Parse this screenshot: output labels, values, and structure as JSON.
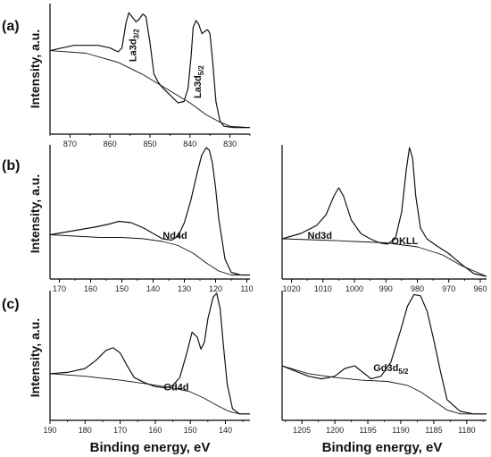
{
  "figure": {
    "x_axis_label": "Binding energy, eV",
    "y_axis_label": "Intensity, a.u."
  },
  "chart_data": [
    {
      "id": "a",
      "type": "line",
      "panel_label": "(a)",
      "xlim": [
        875,
        825
      ],
      "x_reversed": true,
      "ticks": [
        870,
        860,
        850,
        840,
        830
      ],
      "ylim": [
        0,
        1
      ],
      "show_ylabel": true,
      "annotations": [
        {
          "main": "La3d",
          "sub": "3/2",
          "x": 853.5,
          "y": 0.68,
          "rotate": -90
        },
        {
          "main": "La3d",
          "sub": "5/2",
          "x": 837.3,
          "y": 0.4,
          "rotate": -90
        }
      ],
      "series": [
        {
          "role": "spectrum",
          "x": [
            875,
            872,
            869,
            866,
            863,
            860,
            858,
            857,
            856,
            855.3,
            854.5,
            853.5,
            852.7,
            851.8,
            851,
            850,
            849,
            848,
            847,
            845,
            843,
            841.5,
            840.5,
            839.7,
            839.2,
            838.5,
            837.8,
            837,
            836.2,
            835.6,
            835,
            834.3,
            833.5,
            832.5,
            831.5,
            829,
            825
          ],
          "y": [
            0.64,
            0.66,
            0.68,
            0.68,
            0.68,
            0.66,
            0.63,
            0.66,
            0.85,
            0.93,
            0.9,
            0.86,
            0.88,
            0.92,
            0.9,
            0.7,
            0.46,
            0.4,
            0.36,
            0.3,
            0.24,
            0.25,
            0.35,
            0.6,
            0.82,
            0.87,
            0.84,
            0.77,
            0.79,
            0.8,
            0.77,
            0.55,
            0.25,
            0.1,
            0.06,
            0.05,
            0.05
          ]
        },
        {
          "role": "background",
          "x": [
            875,
            866,
            858,
            852,
            846,
            840,
            836,
            833,
            830,
            825
          ],
          "y": [
            0.64,
            0.62,
            0.55,
            0.46,
            0.35,
            0.24,
            0.15,
            0.1,
            0.06,
            0.05
          ]
        }
      ]
    },
    {
      "id": "b-nd4d",
      "type": "line",
      "panel_label": "(b)",
      "xlim": [
        173,
        109
      ],
      "x_reversed": true,
      "ticks": [
        170,
        160,
        150,
        140,
        130,
        120,
        110
      ],
      "ylim": [
        0,
        1
      ],
      "show_ylabel": true,
      "annotations": [
        {
          "main": "Nd4d",
          "sub": "",
          "x": 133,
          "y": 0.3,
          "rotate": 0
        }
      ],
      "series": [
        {
          "role": "spectrum",
          "x": [
            173,
            168,
            163,
            158,
            154,
            151,
            147,
            143,
            140,
            137,
            134,
            132,
            130,
            128,
            126,
            124.5,
            123,
            122,
            121,
            120,
            119,
            117,
            115,
            112,
            109
          ],
          "y": [
            0.33,
            0.35,
            0.37,
            0.39,
            0.41,
            0.43,
            0.42,
            0.38,
            0.34,
            0.3,
            0.29,
            0.32,
            0.42,
            0.58,
            0.78,
            0.92,
            0.98,
            0.96,
            0.86,
            0.68,
            0.45,
            0.15,
            0.05,
            0.03,
            0.03
          ]
        },
        {
          "role": "background",
          "x": [
            173,
            165,
            157,
            150,
            143,
            137,
            132,
            127,
            123,
            119,
            115,
            109
          ],
          "y": [
            0.33,
            0.32,
            0.31,
            0.31,
            0.3,
            0.28,
            0.25,
            0.19,
            0.12,
            0.06,
            0.03,
            0.03
          ]
        }
      ]
    },
    {
      "id": "b-nd3d",
      "type": "line",
      "panel_label": "",
      "xlim": [
        1023,
        958
      ],
      "x_reversed": true,
      "ticks": [
        1020,
        1010,
        1000,
        990,
        980,
        970,
        960
      ],
      "ylim": [
        0,
        1
      ],
      "show_ylabel": false,
      "annotations": [
        {
          "main": "Nd3d",
          "sub": "",
          "x": 1011,
          "y": 0.3,
          "rotate": 0
        },
        {
          "main": "OKLL",
          "sub": "",
          "x": 984,
          "y": 0.26,
          "rotate": 0
        }
      ],
      "series": [
        {
          "role": "spectrum",
          "x": [
            1023,
            1017,
            1012,
            1009,
            1006.5,
            1005,
            1003.5,
            1001,
            998,
            995,
            992,
            989.5,
            987,
            985,
            983.5,
            982.5,
            981.5,
            980.5,
            979,
            977,
            974,
            970,
            966,
            962,
            958
          ],
          "y": [
            0.3,
            0.34,
            0.4,
            0.48,
            0.62,
            0.68,
            0.62,
            0.44,
            0.34,
            0.3,
            0.27,
            0.26,
            0.3,
            0.5,
            0.82,
            0.98,
            0.9,
            0.62,
            0.38,
            0.3,
            0.25,
            0.19,
            0.11,
            0.04,
            0.02
          ]
        },
        {
          "role": "background",
          "x": [
            1023,
            1010,
            1000,
            990,
            980,
            972,
            966,
            960,
            958
          ],
          "y": [
            0.3,
            0.29,
            0.28,
            0.27,
            0.24,
            0.18,
            0.1,
            0.04,
            0.02
          ]
        }
      ]
    },
    {
      "id": "c-gd4d",
      "type": "line",
      "panel_label": "(c)",
      "xlim": [
        190,
        133
      ],
      "x_reversed": true,
      "ticks": [
        190,
        180,
        170,
        160,
        150,
        140
      ],
      "ylim": [
        0,
        1
      ],
      "show_ylabel": true,
      "annotations": [
        {
          "main": "Gd4d",
          "sub": "",
          "x": 154,
          "y": 0.23,
          "rotate": 0
        }
      ],
      "series": [
        {
          "role": "spectrum",
          "x": [
            190,
            185,
            180,
            177,
            174,
            172,
            170,
            168,
            166,
            163,
            160,
            157,
            155,
            153,
            151,
            149.5,
            148,
            147,
            146,
            145,
            143.5,
            142.5,
            141.5,
            140.5,
            139.5,
            138,
            136,
            133
          ],
          "y": [
            0.36,
            0.37,
            0.4,
            0.46,
            0.54,
            0.56,
            0.52,
            0.42,
            0.33,
            0.29,
            0.26,
            0.25,
            0.27,
            0.33,
            0.52,
            0.68,
            0.64,
            0.55,
            0.6,
            0.78,
            0.95,
            0.98,
            0.86,
            0.56,
            0.28,
            0.09,
            0.05,
            0.05
          ]
        },
        {
          "role": "background",
          "x": [
            190,
            180,
            170,
            162,
            155,
            150,
            146,
            142,
            139,
            136,
            133
          ],
          "y": [
            0.36,
            0.34,
            0.31,
            0.28,
            0.25,
            0.22,
            0.17,
            0.11,
            0.07,
            0.05,
            0.05
          ]
        }
      ]
    },
    {
      "id": "c-gd3d",
      "type": "line",
      "panel_label": "",
      "xlim": [
        1208,
        1177
      ],
      "x_reversed": true,
      "ticks": [
        1205,
        1200,
        1195,
        1190,
        1185,
        1180
      ],
      "ylim": [
        0,
        1
      ],
      "show_ylabel": false,
      "annotations": [
        {
          "main": "Gd3d",
          "sub": "5/2",
          "x": 1191.5,
          "y": 0.38,
          "rotate": 0
        }
      ],
      "series": [
        {
          "role": "spectrum",
          "x": [
            1208,
            1206,
            1204,
            1202,
            1200,
            1198.5,
            1197,
            1196,
            1194.5,
            1193,
            1191.5,
            1190,
            1189,
            1188,
            1187,
            1186,
            1185,
            1184,
            1183,
            1181,
            1179,
            1177
          ],
          "y": [
            0.42,
            0.38,
            0.34,
            0.32,
            0.34,
            0.4,
            0.42,
            0.38,
            0.32,
            0.34,
            0.45,
            0.7,
            0.88,
            0.97,
            0.96,
            0.84,
            0.62,
            0.38,
            0.16,
            0.07,
            0.05,
            0.05
          ]
        },
        {
          "role": "background",
          "x": [
            1208,
            1204,
            1200,
            1196,
            1192,
            1189,
            1187,
            1185,
            1183,
            1181,
            1177
          ],
          "y": [
            0.42,
            0.36,
            0.33,
            0.31,
            0.3,
            0.27,
            0.22,
            0.15,
            0.08,
            0.05,
            0.05
          ]
        }
      ]
    }
  ]
}
